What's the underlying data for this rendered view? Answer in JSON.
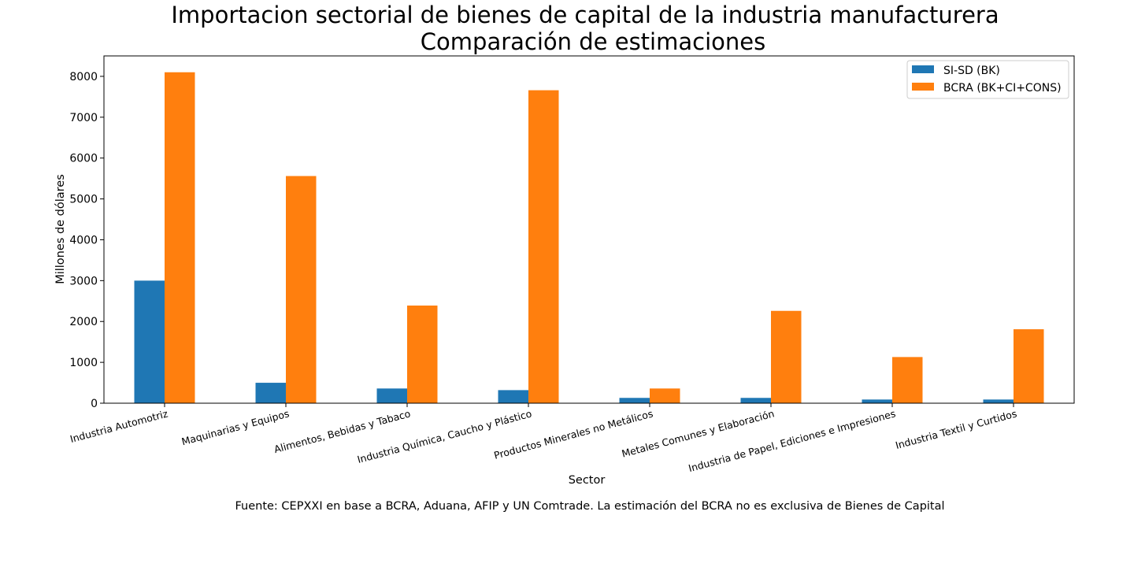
{
  "chart_data": {
    "type": "bar",
    "title": "Importacion sectorial de bienes de capital de la industria manufacturera",
    "subtitle": "Comparación de estimaciones",
    "xlabel": "Sector",
    "ylabel": "Millones de dólares",
    "ylim": [
      0,
      8500
    ],
    "yticks": [
      0,
      1000,
      2000,
      3000,
      4000,
      5000,
      6000,
      7000,
      8000
    ],
    "grid": false,
    "legend_position": "top-right",
    "categories": [
      "Industria Automotriz",
      "Maquinarias y Equipos",
      "Alimentos, Bebidas y Tabaco",
      "Industria Química, Caucho y Plástico",
      "Productos Minerales no Metálicos",
      "Metales Comunes y Elaboración",
      "Industria de Papel, Ediciones e Impresiones",
      "Industria Textil y Curtidos"
    ],
    "series": [
      {
        "name": "SI-SD (BK)",
        "color": "#1f77b4",
        "values": [
          3000,
          500,
          360,
          320,
          130,
          130,
          90,
          90
        ]
      },
      {
        "name": "BCRA (BK+CI+CONS)",
        "color": "#ff7f0e",
        "values": [
          8100,
          5560,
          2390,
          7660,
          360,
          2260,
          1130,
          1810
        ]
      }
    ],
    "source_note": "Fuente: CEPXXI en base a BCRA, Aduana, AFIP y UN Comtrade. La estimación del BCRA no es exclusiva de Bienes de Capital"
  }
}
